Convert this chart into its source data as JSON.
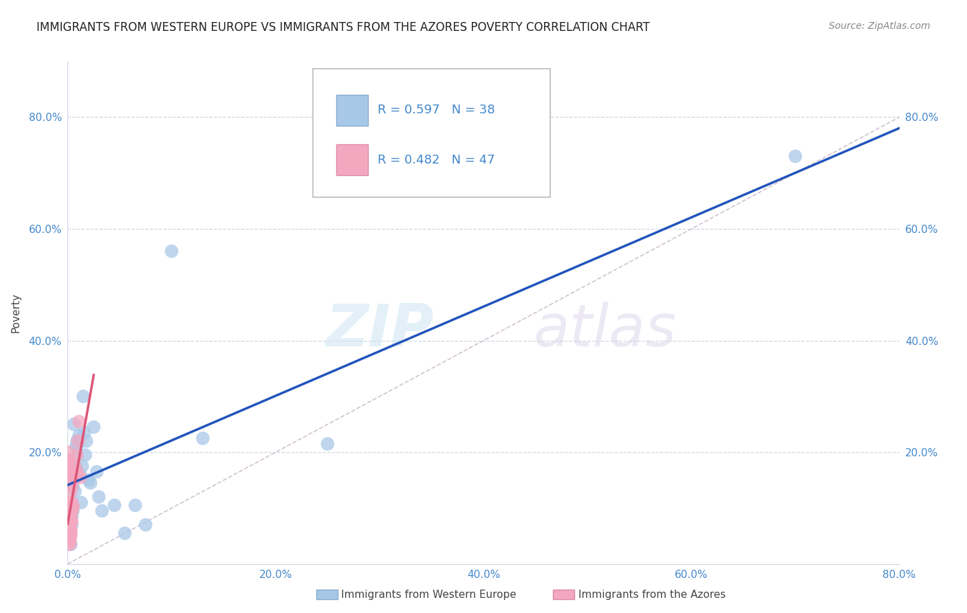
{
  "title": "IMMIGRANTS FROM WESTERN EUROPE VS IMMIGRANTS FROM THE AZORES POVERTY CORRELATION CHART",
  "source": "Source: ZipAtlas.com",
  "xlabel_blue": "Immigrants from Western Europe",
  "xlabel_pink": "Immigrants from the Azores",
  "ylabel": "Poverty",
  "watermark_zip": "ZIP",
  "watermark_atlas": "atlas",
  "blue_R": 0.597,
  "blue_N": 38,
  "pink_R": 0.482,
  "pink_N": 47,
  "blue_color": "#a8c8e8",
  "pink_color": "#f4a8c0",
  "blue_line_color": "#2255bb",
  "pink_line_color": "#dd5577",
  "diagonal_color": "#ccbbcc",
  "axis_label_color": "#4488cc",
  "blue_scatter": [
    [
      0.001,
      0.055
    ],
    [
      0.002,
      0.045
    ],
    [
      0.003,
      0.035
    ],
    [
      0.003,
      0.1
    ],
    [
      0.004,
      0.085
    ],
    [
      0.004,
      0.07
    ],
    [
      0.005,
      0.095
    ],
    [
      0.005,
      0.14
    ],
    [
      0.006,
      0.165
    ],
    [
      0.006,
      0.25
    ],
    [
      0.007,
      0.13
    ],
    [
      0.008,
      0.175
    ],
    [
      0.008,
      0.21
    ],
    [
      0.009,
      0.195
    ],
    [
      0.009,
      0.22
    ],
    [
      0.01,
      0.215
    ],
    [
      0.011,
      0.23
    ],
    [
      0.012,
      0.16
    ],
    [
      0.013,
      0.11
    ],
    [
      0.014,
      0.175
    ],
    [
      0.015,
      0.3
    ],
    [
      0.016,
      0.235
    ],
    [
      0.017,
      0.195
    ],
    [
      0.018,
      0.22
    ],
    [
      0.02,
      0.15
    ],
    [
      0.022,
      0.145
    ],
    [
      0.025,
      0.245
    ],
    [
      0.028,
      0.165
    ],
    [
      0.03,
      0.12
    ],
    [
      0.033,
      0.095
    ],
    [
      0.045,
      0.105
    ],
    [
      0.055,
      0.055
    ],
    [
      0.065,
      0.105
    ],
    [
      0.075,
      0.07
    ],
    [
      0.1,
      0.56
    ],
    [
      0.13,
      0.225
    ],
    [
      0.25,
      0.215
    ],
    [
      0.7,
      0.73
    ]
  ],
  "pink_scatter": [
    [
      0.001,
      0.185
    ],
    [
      0.001,
      0.2
    ],
    [
      0.001,
      0.155
    ],
    [
      0.001,
      0.165
    ],
    [
      0.001,
      0.175
    ],
    [
      0.001,
      0.11
    ],
    [
      0.001,
      0.095
    ],
    [
      0.001,
      0.185
    ],
    [
      0.001,
      0.08
    ],
    [
      0.002,
      0.06
    ],
    [
      0.002,
      0.075
    ],
    [
      0.002,
      0.055
    ],
    [
      0.002,
      0.045
    ],
    [
      0.002,
      0.035
    ],
    [
      0.002,
      0.05
    ],
    [
      0.002,
      0.06
    ],
    [
      0.002,
      0.055
    ],
    [
      0.002,
      0.07
    ],
    [
      0.002,
      0.04
    ],
    [
      0.002,
      0.065
    ],
    [
      0.002,
      0.075
    ],
    [
      0.002,
      0.055
    ],
    [
      0.002,
      0.045
    ],
    [
      0.003,
      0.06
    ],
    [
      0.003,
      0.1
    ],
    [
      0.003,
      0.05
    ],
    [
      0.003,
      0.055
    ],
    [
      0.003,
      0.08
    ],
    [
      0.003,
      0.13
    ],
    [
      0.003,
      0.085
    ],
    [
      0.004,
      0.075
    ],
    [
      0.004,
      0.095
    ],
    [
      0.004,
      0.14
    ],
    [
      0.004,
      0.11
    ],
    [
      0.005,
      0.105
    ],
    [
      0.005,
      0.1
    ],
    [
      0.006,
      0.155
    ],
    [
      0.006,
      0.155
    ],
    [
      0.007,
      0.175
    ],
    [
      0.007,
      0.16
    ],
    [
      0.008,
      0.155
    ],
    [
      0.008,
      0.155
    ],
    [
      0.009,
      0.195
    ],
    [
      0.009,
      0.165
    ],
    [
      0.01,
      0.22
    ],
    [
      0.011,
      0.255
    ],
    [
      0.012,
      0.155
    ]
  ],
  "xlim": [
    0.0,
    0.8
  ],
  "ylim": [
    0.0,
    0.9
  ],
  "xticks": [
    0.0,
    0.2,
    0.4,
    0.6,
    0.8
  ],
  "yticks": [
    0.2,
    0.4,
    0.6,
    0.8
  ],
  "xtick_labels": [
    "0.0%",
    "20.0%",
    "40.0%",
    "60.0%",
    "80.0%"
  ],
  "ytick_labels": [
    "20.0%",
    "40.0%",
    "60.0%",
    "80.0%"
  ],
  "background_color": "#ffffff",
  "grid_color": "#d0d8e4",
  "title_fontsize": 12,
  "axis_fontsize": 11,
  "tick_fontsize": 11,
  "legend_fontsize": 13,
  "source_fontsize": 10
}
